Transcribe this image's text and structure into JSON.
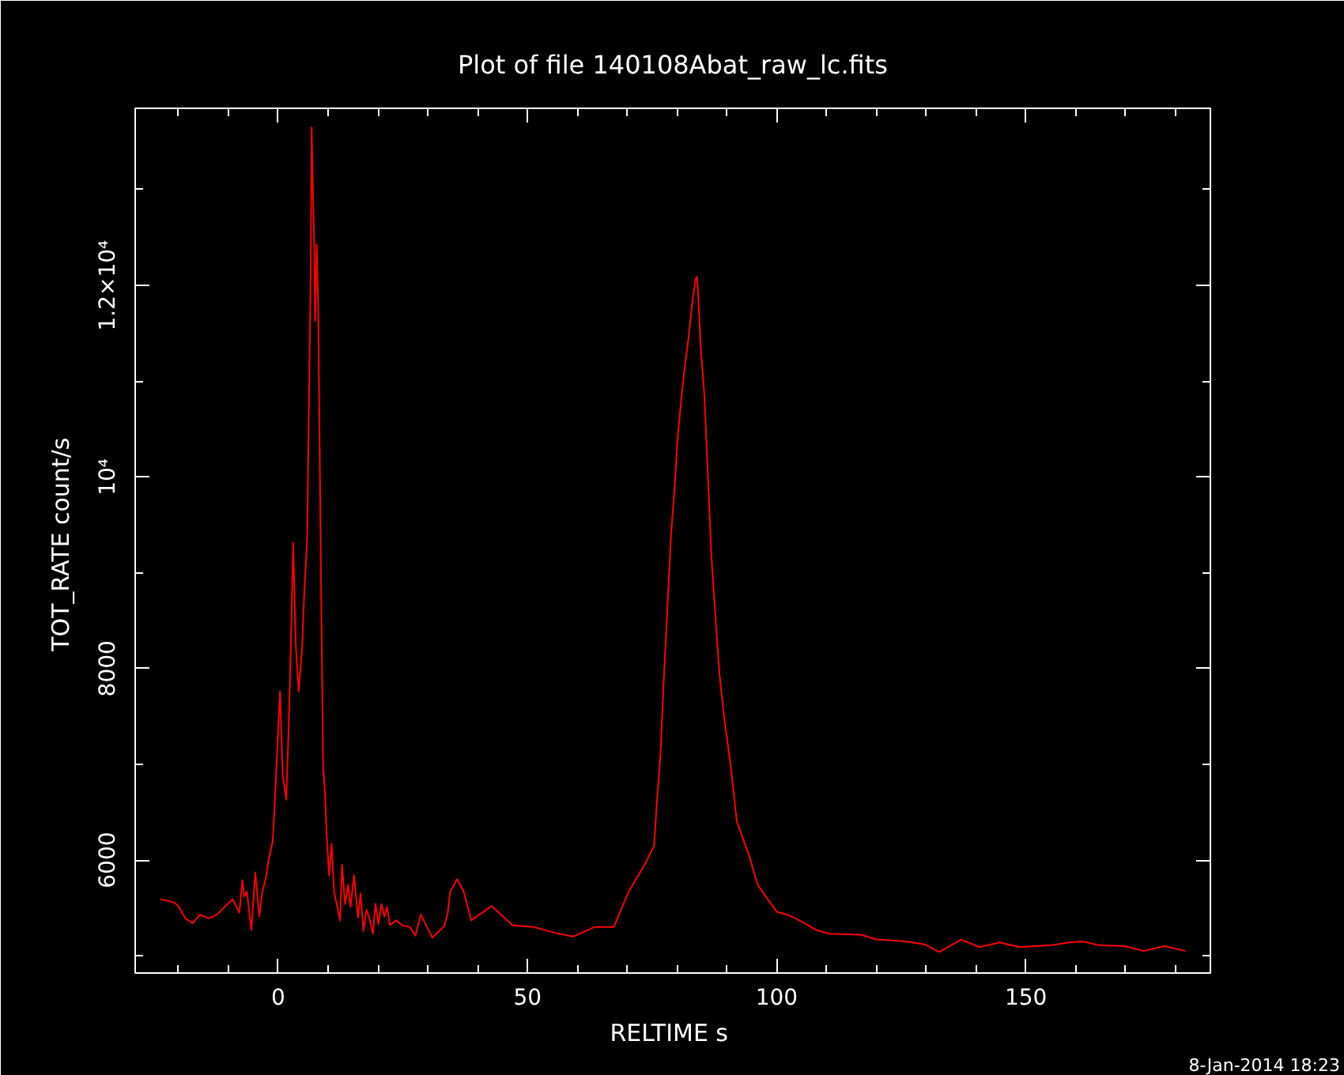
{
  "chart_data": {
    "type": "line",
    "title": "Plot of file 140108Abat_raw_lc.fits",
    "xlabel": "RELTIME  s",
    "ylabel": "TOT_RATE  count/s",
    "annotations": [
      "8-Jan-2014 18:23"
    ],
    "x": [
      -23.6,
      -21.8,
      -20.7,
      -19.9,
      -18.6,
      -17.2,
      -15.7,
      -13.9,
      -12.3,
      -10.2,
      -9.1,
      -7.8,
      -7.2,
      -6.8,
      -6.3,
      -5.4,
      -4.6,
      -3.8,
      -3.2,
      -2.5,
      -1.9,
      -1.1,
      -0.5,
      0.35,
      0.9,
      1.6,
      2.1,
      2.5,
      3.0,
      3.5,
      4.1,
      4.8,
      5.2,
      5.8,
      6.1,
      6.5,
      6.7,
      6.9,
      7.2,
      7.4,
      7.7,
      8.0,
      8.3,
      8.6,
      9.0,
      9.4,
      9.7,
      10.2,
      10.7,
      11.2,
      12.4,
      12.8,
      13.4,
      14.0,
      14.5,
      15.2,
      16.0,
      16.5,
      17.1,
      17.7,
      18.2,
      19.0,
      19.5,
      20.1,
      20.7,
      21.3,
      21.8,
      22.4,
      23.7,
      24.8,
      26.4,
      27.5,
      28.6,
      30.9,
      33.3,
      34.0,
      34.5,
      35.9,
      37.2,
      38.7,
      42.8,
      47.0,
      51.3,
      55.5,
      59.2,
      63.4,
      67.3,
      70.3,
      73.5,
      75.4,
      75.9,
      76.7,
      77.3,
      78.0,
      78.8,
      79.6,
      80.1,
      80.9,
      81.6,
      82.3,
      83.0,
      83.7,
      84.0,
      84.2,
      84.7,
      85.5,
      86.2,
      86.9,
      87.6,
      88.5,
      89.4,
      90.7,
      92.0,
      93.6,
      94.7,
      95.4,
      96.3,
      100.0,
      102.6,
      105.3,
      107.9,
      110.5,
      116.9,
      120.1,
      125.9,
      129.6,
      132.6,
      137.0,
      140.7,
      144.7,
      148.7,
      155.0,
      158.7,
      161.4,
      164.6,
      169.9,
      173.6,
      177.8,
      182.0
    ],
    "series": [
      {
        "color": "#ff0000",
        "values": [
          5590,
          5570,
          5550,
          5510,
          5390,
          5340,
          5430,
          5390,
          5430,
          5540,
          5590,
          5450,
          5790,
          5620,
          5670,
          5270,
          5870,
          5410,
          5670,
          5810,
          6010,
          6200,
          6810,
          7760,
          6890,
          6630,
          7400,
          8170,
          9310,
          8260,
          7760,
          8230,
          8770,
          9360,
          10580,
          12040,
          13650,
          13120,
          12460,
          11630,
          12430,
          11810,
          10320,
          8830,
          6980,
          6690,
          6270,
          5840,
          6170,
          5670,
          5370,
          5950,
          5540,
          5740,
          5510,
          5840,
          5400,
          5650,
          5260,
          5480,
          5410,
          5230,
          5540,
          5330,
          5540,
          5410,
          5510,
          5320,
          5370,
          5320,
          5300,
          5210,
          5430,
          5190,
          5310,
          5450,
          5670,
          5800,
          5670,
          5370,
          5520,
          5320,
          5300,
          5240,
          5200,
          5300,
          5300,
          5670,
          5950,
          6150,
          6560,
          7120,
          7840,
          8560,
          9400,
          9950,
          10400,
          10840,
          11170,
          11450,
          11790,
          12060,
          12090,
          11950,
          11400,
          10840,
          10010,
          9170,
          8620,
          7950,
          7510,
          7010,
          6400,
          6170,
          6010,
          5870,
          5730,
          5460,
          5420,
          5350,
          5270,
          5230,
          5220,
          5170,
          5150,
          5120,
          5040,
          5170,
          5090,
          5140,
          5090,
          5110,
          5140,
          5150,
          5110,
          5100,
          5050,
          5100,
          5050
        ]
      }
    ],
    "xlim": [
      -28.7,
      187
    ],
    "ylim": [
      4820,
      13850
    ],
    "xticks": [
      {
        "value": -20,
        "label": null
      },
      {
        "value": -10,
        "label": null
      },
      0,
      {
        "value": 10,
        "label": null
      },
      {
        "value": 20,
        "label": null
      },
      {
        "value": 30,
        "label": null
      },
      {
        "value": 40,
        "label": null
      },
      50,
      {
        "value": 60,
        "label": null
      },
      {
        "value": 70,
        "label": null
      },
      {
        "value": 80,
        "label": null
      },
      {
        "value": 90,
        "label": null
      },
      100,
      {
        "value": 110,
        "label": null
      },
      {
        "value": 120,
        "label": null
      },
      {
        "value": 130,
        "label": null
      },
      {
        "value": 140,
        "label": null
      },
      150,
      {
        "value": 160,
        "label": null
      },
      {
        "value": 170,
        "label": null
      },
      {
        "value": 180,
        "label": null
      }
    ],
    "yticks": [
      {
        "value": 5000,
        "label": null
      },
      6000,
      {
        "value": 7000,
        "label": null
      },
      8000,
      {
        "value": 9000,
        "label": null
      },
      {
        "value": 10000,
        "label": "10⁴"
      },
      {
        "value": 11000,
        "label": null
      },
      {
        "value": 12000,
        "label": "1.2×10⁴"
      },
      {
        "value": 13000,
        "label": null
      }
    ],
    "grid": false,
    "line_style": "solid"
  }
}
